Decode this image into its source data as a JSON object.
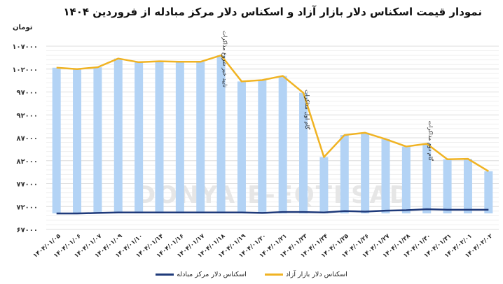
{
  "title": "نمودار قیمت اسکناس دلار بازار آزاد و اسکناس دلار مرکز مبادله از فروردین ۱۴۰۴",
  "unit_label": "تومان",
  "watermark": "DONYA-E-EQTESAD",
  "colors": {
    "bar": "#b3d3f5",
    "free_market_line": "#f0b323",
    "exchange_center_line": "#1f3a7a",
    "grid": "#e8e8e8"
  },
  "legend": [
    {
      "label": "اسکناس دلار بازار آزاد",
      "color": "#f0b323"
    },
    {
      "label": "اسکناس دلار مرکز مبادله",
      "color": "#1f3a7a"
    }
  ],
  "annotations": [
    {
      "text": "تایید خبر شروع مذاکرات",
      "category_index": 8
    },
    {
      "text": "گام اول مذاکرات",
      "category_index": 12
    },
    {
      "text": "گام دوم مذاکرات",
      "category_index": 18
    }
  ],
  "chart_data": {
    "type": "bar",
    "title": "نمودار قیمت اسکناس دلار بازار آزاد و اسکناس دلار مرکز مبادله از فروردین ۱۴۰۴",
    "xlabel": "",
    "ylabel": "تومان",
    "ylim": [
      67000,
      107000
    ],
    "yticks": [
      "۱۰۷۰۰۰",
      "۱۰۲۰۰۰",
      "۹۷۰۰۰",
      "۹۲۰۰۰",
      "۸۷۰۰۰",
      "۸۲۰۰۰",
      "۷۷۰۰۰",
      "۷۲۰۰۰",
      "۶۷۰۰۰"
    ],
    "ytick_values": [
      107000,
      102000,
      97000,
      92000,
      87000,
      82000,
      77000,
      72000,
      67000
    ],
    "grid": true,
    "legend_position": "bottom",
    "categories": [
      "۱۴۰۴/۰۱/۰۵",
      "۱۴۰۴/۰۱/۰۶",
      "۱۴۰۴/۰۱/۰۷",
      "۱۴۰۴/۰۱/۰۹",
      "۱۴۰۴/۰۱/۱۰",
      "۱۴۰۴/۰۱/۱۴",
      "۱۴۰۴/۰۱/۱۶",
      "۱۴۰۴/۰۱/۱۷",
      "۱۴۰۴/۰۱/۱۸",
      "۱۴۰۴/۰۱/۱۹",
      "۱۴۰۴/۰۱/۲۰",
      "۱۴۰۴/۰۱/۲۱",
      "۱۴۰۴/۰۱/۲۳",
      "۱۴۰۴/۰۱/۲۴",
      "۱۴۰۴/۰۱/۲۵",
      "۱۴۰۴/۰۱/۲۶",
      "۱۴۰۴/۰۱/۲۷",
      "۱۴۰۴/۰۱/۲۸",
      "۱۴۰۴/۰۱/۳۰",
      "۱۴۰۴/۰۱/۳۱",
      "۱۴۰۴/۰۲/۰۱",
      "۱۴۰۴/۰۲/۰۲"
    ],
    "series": [
      {
        "name": "اسکناس دلار بازار آزاد",
        "type": "bar+line",
        "values": [
          102300,
          102000,
          102400,
          104300,
          103500,
          103700,
          103600,
          103600,
          105000,
          99300,
          99600,
          100500,
          96800,
          82800,
          87600,
          88100,
          86700,
          85100,
          85700,
          82300,
          82400,
          79700
        ]
      },
      {
        "name": "اسکناس دلار مرکز مبادله",
        "type": "line",
        "values": [
          70500,
          70500,
          70600,
          70700,
          70700,
          70700,
          70700,
          70700,
          70700,
          70700,
          70600,
          70800,
          70800,
          70700,
          71000,
          70900,
          71100,
          71200,
          71400,
          71300,
          71300,
          71300
        ]
      }
    ]
  }
}
